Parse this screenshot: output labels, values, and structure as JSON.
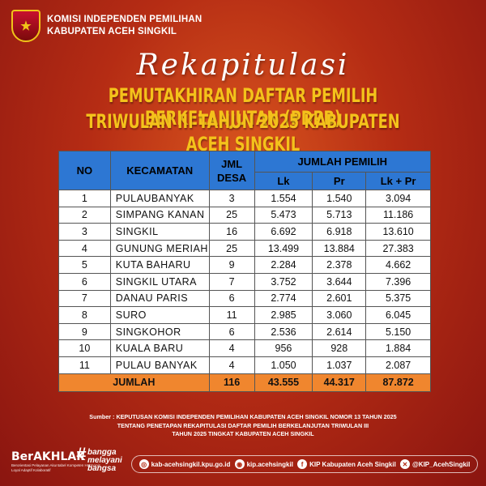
{
  "header": {
    "org_line1": "KOMISI INDEPENDEN PEMILIHAN",
    "org_line2": "KABUPATEN ACEH SINGKIL"
  },
  "titles": {
    "script": "Rekapitulasi",
    "line1": "PEMUTAKHIRAN DAFTAR PEMILIH BERKELANJUTAN (PDPB)",
    "line2": "TRIWULAN III TAHUN 2025 KABUPATEN ACEH SINGKIL"
  },
  "table": {
    "headers": {
      "no": "NO",
      "kecamatan": "KECAMATAN",
      "jml_desa": "JML DESA",
      "jumlah_pemilih": "JUMLAH PEMILIH",
      "lk": "Lk",
      "pr": "Pr",
      "lk_pr": "Lk + Pr"
    },
    "rows": [
      {
        "no": "1",
        "kecamatan": "PULAUBANYAK",
        "desa": "3",
        "lk": "1.554",
        "pr": "1.540",
        "total": "3.094"
      },
      {
        "no": "2",
        "kecamatan": "SIMPANG KANAN",
        "desa": "25",
        "lk": "5.473",
        "pr": "5.713",
        "total": "11.186"
      },
      {
        "no": "3",
        "kecamatan": "SINGKIL",
        "desa": "16",
        "lk": "6.692",
        "pr": "6.918",
        "total": "13.610"
      },
      {
        "no": "4",
        "kecamatan": "GUNUNG MERIAH",
        "desa": "25",
        "lk": "13.499",
        "pr": "13.884",
        "total": "27.383"
      },
      {
        "no": "5",
        "kecamatan": "KUTA BAHARU",
        "desa": "9",
        "lk": "2.284",
        "pr": "2.378",
        "total": "4.662"
      },
      {
        "no": "6",
        "kecamatan": "SINGKIL UTARA",
        "desa": "7",
        "lk": "3.752",
        "pr": "3.644",
        "total": "7.396"
      },
      {
        "no": "7",
        "kecamatan": "DANAU PARIS",
        "desa": "6",
        "lk": "2.774",
        "pr": "2.601",
        "total": "5.375"
      },
      {
        "no": "8",
        "kecamatan": "SURO",
        "desa": "11",
        "lk": "2.985",
        "pr": "3.060",
        "total": "6.045"
      },
      {
        "no": "9",
        "kecamatan": "SINGKOHOR",
        "desa": "6",
        "lk": "2.536",
        "pr": "2.614",
        "total": "5.150"
      },
      {
        "no": "10",
        "kecamatan": "KUALA BARU",
        "desa": "4",
        "lk": "956",
        "pr": "928",
        "total": "1.884"
      },
      {
        "no": "11",
        "kecamatan": "PULAU BANYAK",
        "desa": "4",
        "lk": "1.050",
        "pr": "1.037",
        "total": "2.087"
      }
    ],
    "footer": {
      "label": "JUMLAH",
      "desa": "116",
      "lk": "43.555",
      "pr": "44.317",
      "total": "87.872"
    }
  },
  "source": {
    "line1": "Sumber : KEPUTUSAN KOMISI INDEPENDEN PEMILIHAN KABUPATEN ACEH SINGKIL NOMOR 13 TAHUN 2025",
    "line2": "TENTANG PENETAPAN REKAPITULASI DAFTAR PEMILIH BERKELANJUTAN TRIWULAN III",
    "line3": "TAHUN 2025 TINGKAT KABUPATEN ACEH SINGKIL"
  },
  "footer": {
    "brand": "BerAKHLAK",
    "brand_sub": "Berorientasi Pelayanan Akuntabel Kompeten Harmonis Loyal Adaptif Kolaboratif",
    "hashtag": [
      "bangga",
      "melayani",
      "bangsa"
    ],
    "website": "kab-acehsingkil.kpu.go.id",
    "instagram": "kip.acehsingkil",
    "facebook": "KIP Kabupaten Aceh Singkil",
    "x": "@KIP_AcehSingkil"
  },
  "colors": {
    "header_blue": "#2d77d3",
    "total_orange": "#f0862e",
    "title_yellow": "#f4c21b",
    "background_red": "#b52c14"
  }
}
